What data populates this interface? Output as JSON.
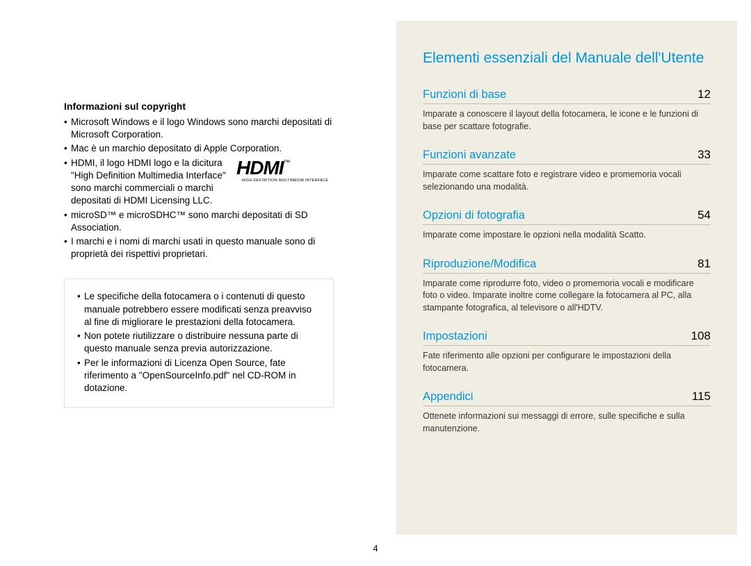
{
  "left": {
    "copyright_heading": "Informazioni sul copyright",
    "bullets": [
      "Microsoft Windows e il logo Windows sono marchi depositati di Microsoft Corporation.",
      "Mac è un marchio depositato di Apple Corporation.",
      "HDMI, il logo HDMI logo e la dicitura \"High Definition Multimedia Interface\" sono marchi commerciali o marchi depositati di HDMI Licensing LLC.",
      "microSD™ e microSDHC™ sono marchi depositati di SD Association.",
      "I marchi e i nomi di marchi usati in questo manuale sono di proprietà dei rispettivi proprietari."
    ],
    "hdmi_logo": {
      "text": "HDMI",
      "tm": "™",
      "subtitle": "HIGH-DEFINITION MULTIMEDIA INTERFACE"
    },
    "notice_bullets": [
      "Le specifiche della fotocamera o i contenuti di questo manuale potrebbero essere modificati senza preavviso al fine di migliorare le prestazioni della fotocamera.",
      "Non potete riutilizzare o distribuire nessuna parte di questo manuale senza previa autorizzazione.",
      "Per le informazioni di Licenza Open Source, fate riferimento a \"OpenSourceInfo.pdf\" nel CD-ROM in dotazione."
    ]
  },
  "right": {
    "title": "Elementi essenziali del Manuale dell'Utente",
    "entries": [
      {
        "label": "Funzioni di base",
        "page": "12",
        "desc": "Imparate a conoscere il layout della fotocamera, le icone e le funzioni di base per scattare fotografie."
      },
      {
        "label": "Funzioni avanzate",
        "page": "33",
        "desc": "Imparate come scattare foto e registrare video e promemoria vocali selezionando una modalità."
      },
      {
        "label": "Opzioni di fotografia",
        "page": "54",
        "desc": "Imparate come impostare le opzioni nella modalità Scatto."
      },
      {
        "label": "Riproduzione/Modifica",
        "page": "81",
        "desc": "Imparate come riprodurre foto, video o promemoria vocali e modificare foto o video. Imparate inoltre come collegare la fotocamera al PC, alla stampante fotografica, al televisore o all'HDTV."
      },
      {
        "label": "Impostazioni",
        "page": "108",
        "desc": "Fate riferimento alle opzioni per configurare le impostazioni della fotocamera."
      },
      {
        "label": "Appendici",
        "page": "115",
        "desc": "Ottenete informazioni sui messaggi di errore, sulle specifiche e sulla manutenzione."
      }
    ]
  },
  "page_number": "4",
  "colors": {
    "accent": "#0096db",
    "right_bg": "#f0ede3",
    "border": "#c0bcb0",
    "text": "#000000"
  },
  "typography": {
    "body_fontsize": 13.5,
    "toc_title_fontsize": 21,
    "toc_label_fontsize": 16.5,
    "toc_desc_fontsize": 12.5
  }
}
